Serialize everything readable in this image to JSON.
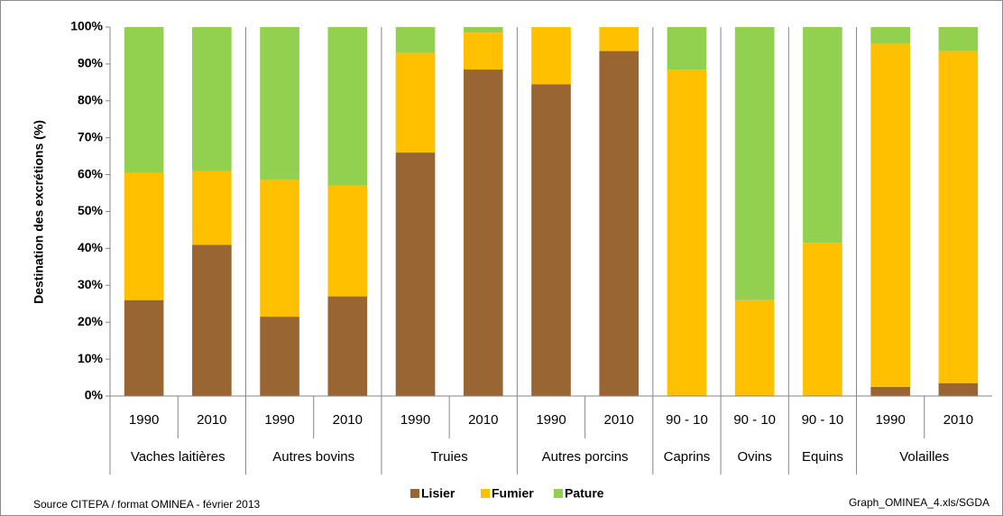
{
  "chart_data": {
    "type": "stacked_bar",
    "y_axis_label": "Destination des excrétions (%)",
    "groups": [
      {
        "name": "Vaches laitières",
        "categories": [
          "1990",
          "2010"
        ]
      },
      {
        "name": "Autres bovins",
        "categories": [
          "1990",
          "2010"
        ]
      },
      {
        "name": "Truies",
        "categories": [
          "1990",
          "2010"
        ]
      },
      {
        "name": "Autres porcins",
        "categories": [
          "1990",
          "2010"
        ]
      },
      {
        "name": "Caprins",
        "categories": [
          "90 - 10"
        ]
      },
      {
        "name": "Ovins",
        "categories": [
          "90 - 10"
        ]
      },
      {
        "name": "Equins",
        "categories": [
          "90 - 10"
        ]
      },
      {
        "name": "Volailles",
        "categories": [
          "1990",
          "2010"
        ]
      }
    ],
    "series": [
      {
        "name": "Lisier",
        "color": "#996633",
        "values": [
          26,
          41,
          21.5,
          27,
          66,
          88.5,
          84.5,
          93.5,
          0,
          0,
          0,
          2.5,
          3.5
        ]
      },
      {
        "name": "Fumier",
        "color": "#ffc000",
        "values": [
          34.5,
          20,
          37,
          30,
          27,
          10,
          15.5,
          6.5,
          88.5,
          26,
          41.5,
          93,
          90
        ]
      },
      {
        "name": "Pature",
        "color": "#92d050",
        "values": [
          39.5,
          39,
          41.5,
          43,
          7,
          1.5,
          0,
          0,
          11.5,
          74,
          58.5,
          4.5,
          6.5
        ]
      }
    ],
    "ylim": [
      0,
      100
    ],
    "yticks": [
      {
        "value": 0,
        "label": "0%"
      },
      {
        "value": 10,
        "label": "10%"
      },
      {
        "value": 20,
        "label": "20%"
      },
      {
        "value": 30,
        "label": "30%"
      },
      {
        "value": 40,
        "label": "40%"
      },
      {
        "value": 50,
        "label": "50%"
      },
      {
        "value": 60,
        "label": "60%"
      },
      {
        "value": 70,
        "label": "70%"
      },
      {
        "value": 80,
        "label": "80%"
      },
      {
        "value": 90,
        "label": "90%"
      },
      {
        "value": 100,
        "label": "100%"
      }
    ],
    "source": "Source CITEPA / format OMINEA - février 2013",
    "file_note": "Graph_OMINEA_4.xls/SGDA",
    "legend": "bottom"
  }
}
